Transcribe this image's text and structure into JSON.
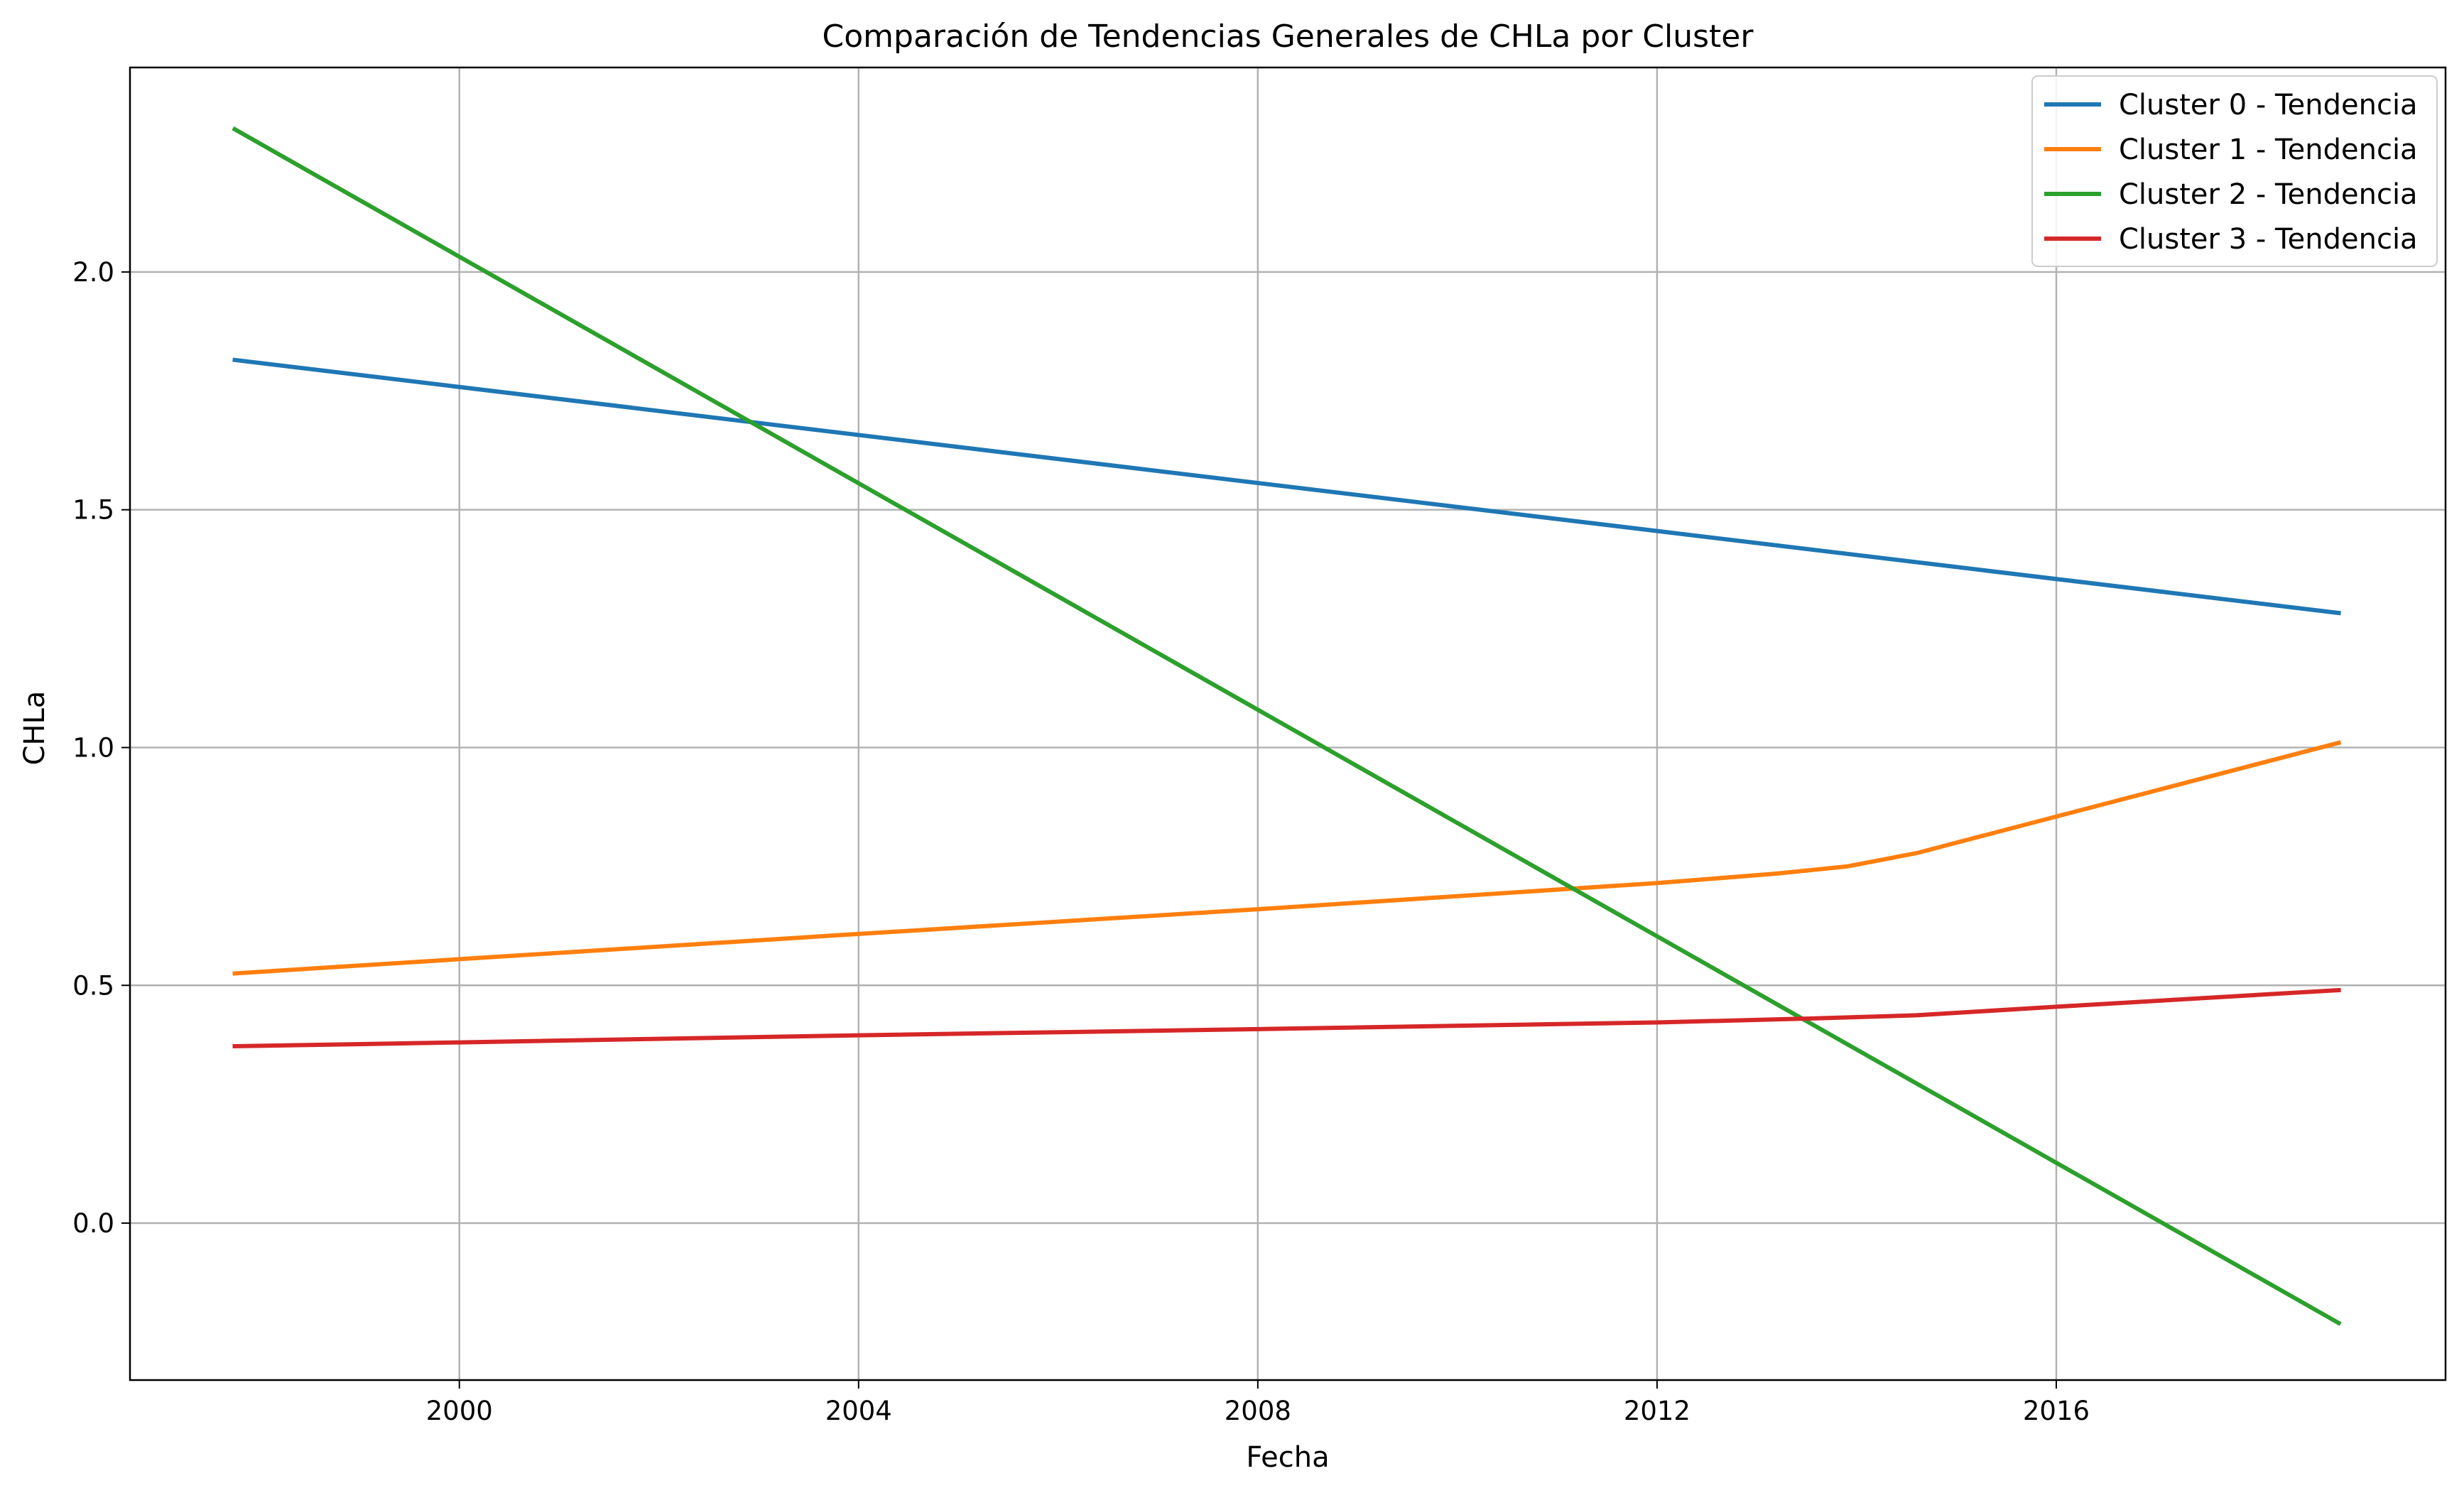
{
  "chart_data": {
    "type": "line",
    "title": "Comparación de Tendencias Generales de CHLa por Cluster",
    "xlabel": "Fecha",
    "ylabel": "CHLa",
    "xlim": [
      1996.7,
      2019.9
    ],
    "ylim": [
      -0.33,
      2.43
    ],
    "x_ticks": [
      2000,
      2004,
      2008,
      2012,
      2016
    ],
    "y_ticks": [
      0.0,
      0.5,
      1.0,
      1.5,
      2.0
    ],
    "x_tick_labels": [
      "2000",
      "2004",
      "2008",
      "2012",
      "2016"
    ],
    "y_tick_labels": [
      "0.0",
      "0.5",
      "1.0",
      "1.5",
      "2.0"
    ],
    "grid": true,
    "legend_position": "top-right",
    "series": [
      {
        "name": "Cluster 0 - Tendencia",
        "color": "#1f77b4",
        "x": [
          1997.75,
          2018.83
        ],
        "y": [
          1.815,
          1.283
        ]
      },
      {
        "name": "Cluster 1 - Tendencia",
        "color": "#ff7f0e",
        "x": [
          1997.75,
          2000,
          2004,
          2008,
          2012,
          2013.2,
          2013.9,
          2014.6,
          2016,
          2018.83
        ],
        "y": [
          0.525,
          0.555,
          0.608,
          0.66,
          0.715,
          0.735,
          0.75,
          0.778,
          0.855,
          1.01
        ]
      },
      {
        "name": "Cluster 2 - Tendencia",
        "color": "#2ca02c",
        "x": [
          1997.75,
          2018.83
        ],
        "y": [
          2.3,
          -0.21
        ]
      },
      {
        "name": "Cluster 3 - Tendencia",
        "color": "#d62728",
        "x": [
          1997.75,
          2000,
          2004,
          2008,
          2012,
          2013.5,
          2014.6,
          2016,
          2018.83
        ],
        "y": [
          0.372,
          0.38,
          0.395,
          0.408,
          0.422,
          0.43,
          0.437,
          0.455,
          0.49
        ]
      }
    ]
  }
}
